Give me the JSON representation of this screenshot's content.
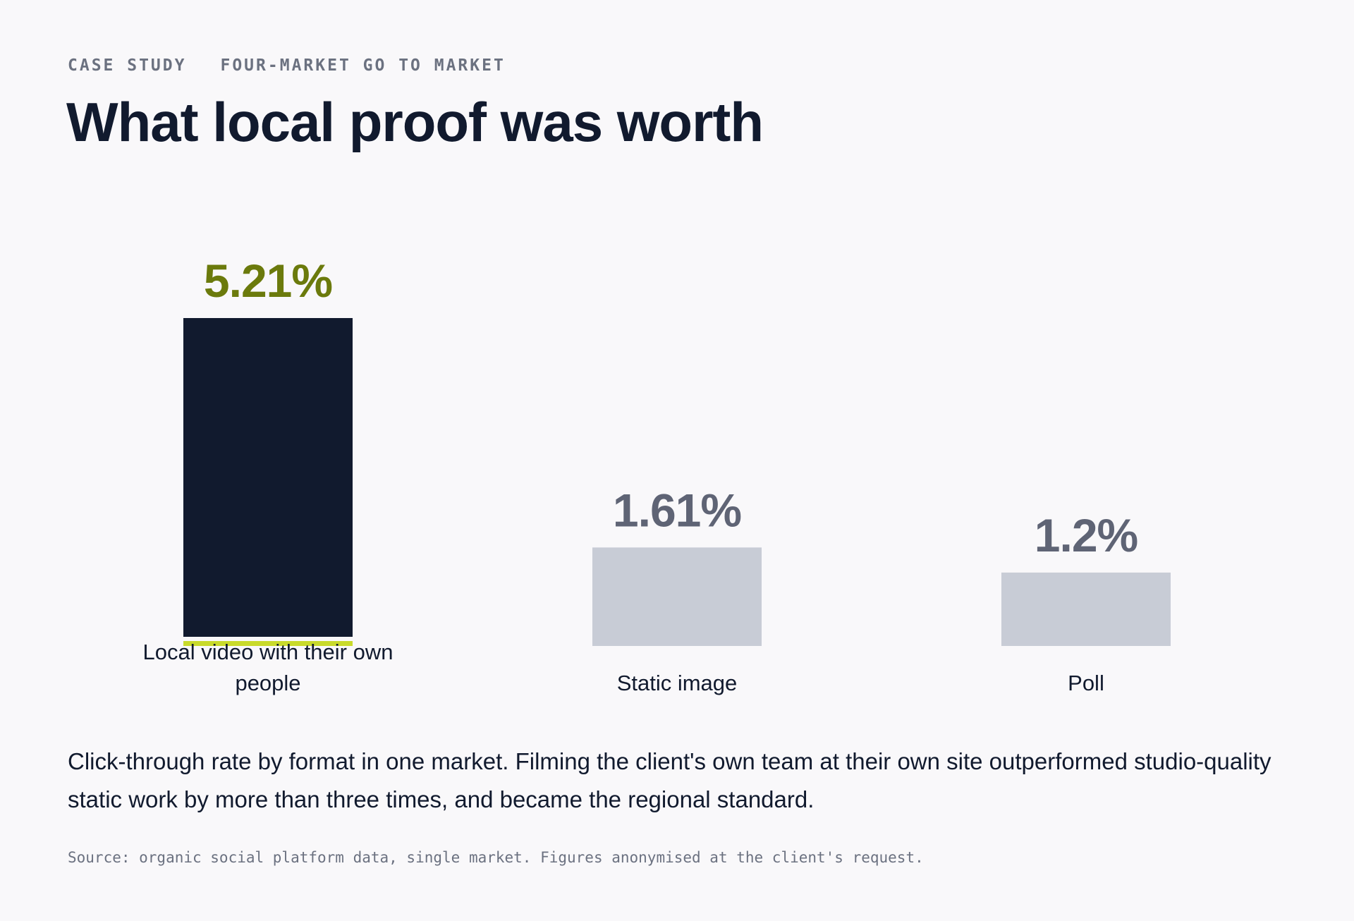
{
  "header": {
    "eyebrow_left": "CASE STUDY",
    "eyebrow_right": "FOUR-MARKET GO TO MARKET",
    "title": "What local proof was worth"
  },
  "chart_data": {
    "type": "bar",
    "title": "What local proof was worth",
    "categories": [
      [
        "Local video with their own",
        "people"
      ],
      [
        "Static image"
      ],
      [
        "Poll"
      ]
    ],
    "values": [
      5.21,
      1.61,
      1.2
    ],
    "value_labels": [
      "5.21%",
      "1.61%",
      "1.2%"
    ],
    "ylim": [
      0,
      5.21
    ],
    "grid": false,
    "highlight_index": 0,
    "colors": {
      "highlight_bar": "#111a2e",
      "highlight_label": "#6b7a0c",
      "highlight_underline": "#c8da2b",
      "muted_bar": "#c8ccd6",
      "muted_label": "#5f6475",
      "category_text": "#111a2e"
    }
  },
  "caption": "Click-through rate by format in one market. Filming the client's own team at their own site outperformed studio-quality static work by more than three times, and became the regional standard.",
  "source": "Source: organic social platform data, single market. Figures anonymised at the client's request."
}
